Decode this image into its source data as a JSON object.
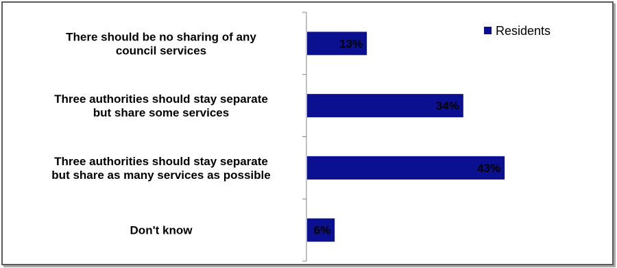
{
  "chart_data": {
    "type": "bar",
    "orientation": "horizontal",
    "categories": [
      [
        "There should be no sharing of any",
        "council services"
      ],
      [
        "Three authorities should stay separate",
        "but share some services"
      ],
      [
        "Three authorities should stay separate",
        "but share as many services as possible"
      ],
      [
        "Don't know"
      ]
    ],
    "series": [
      {
        "name": "Residents",
        "values": [
          13,
          34,
          43,
          6
        ],
        "labels": [
          "13%",
          "34%",
          "43%",
          "6%"
        ],
        "color": "#0a108f"
      }
    ],
    "xlim": [
      0,
      100
    ],
    "unit": "%",
    "grid": false,
    "legend": "top-right"
  }
}
